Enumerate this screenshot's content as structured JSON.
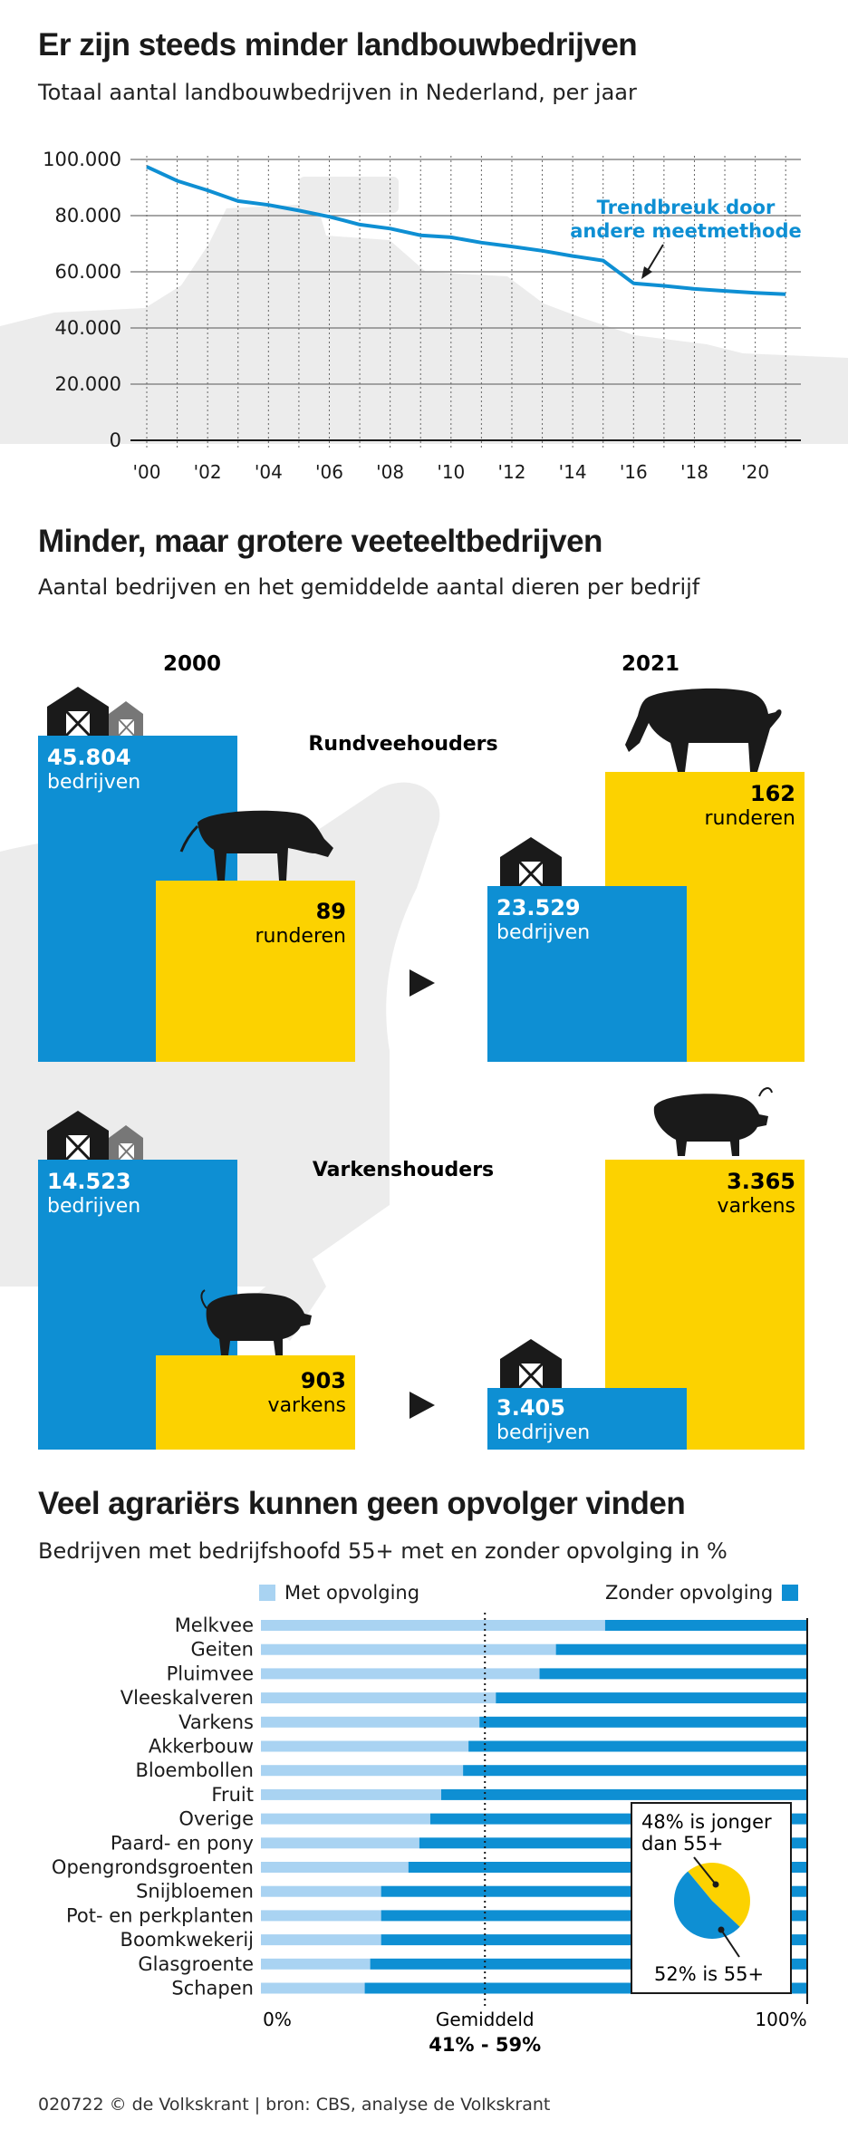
{
  "section1": {
    "title": "Er zijn steeds minder landbouwbedrijven",
    "subtitle": "Totaal aantal landbouwbedrijven in Nederland, per jaar"
  },
  "chart_line": {
    "type": "line",
    "x": [
      2000,
      2001,
      2002,
      2003,
      2004,
      2005,
      2006,
      2007,
      2008,
      2009,
      2010,
      2011,
      2012,
      2013,
      2014,
      2015,
      2016,
      2017,
      2018,
      2019,
      2020,
      2021
    ],
    "values": [
      97400,
      92400,
      89000,
      85200,
      83800,
      81800,
      79600,
      76800,
      75400,
      73000,
      72300,
      70400,
      69000,
      67500,
      65600,
      64000,
      55900,
      55000,
      53900,
      53200,
      52500,
      52000
    ],
    "ylim": [
      0,
      100000
    ],
    "yticks": [
      "100.000",
      "80.000",
      "60.000",
      "40.000",
      "20.000",
      "0"
    ],
    "xticks": [
      "'00",
      "'02",
      "'04",
      "'06",
      "'08",
      "'10",
      "'12",
      "'14",
      "'16",
      "'18",
      "'20"
    ],
    "annotation_line1": "Trendbreuk door",
    "annotation_line2": "andere meetmethode",
    "line_color": "#0e8fd3",
    "grid": true
  },
  "section2": {
    "title": "Minder, maar grotere veeteeltbedrijven",
    "subtitle": "Aantal bedrijven en het gemiddelde aantal dieren per bedrijf",
    "year_a": "2000",
    "year_b": "2021",
    "cattle": {
      "label": "Rundveehouders",
      "a_farms": "45.804",
      "a_farms_unit": "bedrijven",
      "a_animals": "89",
      "a_animals_unit": "runderen",
      "b_farms": "23.529",
      "b_farms_unit": "bedrijven",
      "b_animals": "162",
      "b_animals_unit": "runderen"
    },
    "pigs": {
      "label": "Varkenshouders",
      "a_farms": "14.523",
      "a_farms_unit": "bedrijven",
      "a_animals": "903",
      "a_animals_unit": "varkens",
      "b_farms": "3.405",
      "b_farms_unit": "bedrijven",
      "b_animals": "3.365",
      "b_animals_unit": "varkens"
    },
    "colors": {
      "blue": "#0e8fd3",
      "yellow": "#fcd200"
    }
  },
  "section3": {
    "title": "Veel agrariërs kunnen geen opvolger vinden",
    "subtitle": "Bedrijven met bedrijfshoofd 55+ met en zonder opvolging in %",
    "legend_with": "Met opvolging",
    "legend_without": "Zonder opvolging",
    "axis_min": "0%",
    "axis_mid": "Gemiddeld",
    "axis_max": "100%",
    "average_label": "41% - 59%",
    "pie_top_line1": "48% is jonger",
    "pie_top_line2": "dan 55+",
    "pie_bottom": "52% is 55+"
  },
  "chart_data": {
    "type": "bar",
    "orientation": "horizontal",
    "stacked": true,
    "categories": [
      "Melkvee",
      "Geiten",
      "Pluimvee",
      "Vleeskalveren",
      "Varkens",
      "Akkerbouw",
      "Bloembollen",
      "Fruit",
      "Overige",
      "Paard- en pony",
      "Opengrondsgroenten",
      "Snijbloemen",
      "Pot- en perkplanten",
      "Boomkwekerij",
      "Glasgroente",
      "Schapen"
    ],
    "series": [
      {
        "name": "Met opvolging",
        "values": [
          63,
          54,
          51,
          43,
          40,
          38,
          37,
          33,
          31,
          29,
          27,
          22,
          22,
          22,
          20,
          19
        ],
        "color": "#a9d3f2"
      },
      {
        "name": "Zonder opvolging",
        "values": [
          37,
          46,
          49,
          57,
          60,
          62,
          63,
          67,
          69,
          71,
          73,
          78,
          78,
          78,
          80,
          81
        ],
        "color": "#0e8fd3"
      }
    ],
    "xlim": [
      0,
      100
    ],
    "average": 41,
    "pie": {
      "values": [
        48,
        52
      ],
      "colors": [
        "#fcd200",
        "#0e8fd3"
      ]
    }
  },
  "footer": "020722 © de Volkskrant | bron: CBS, analyse de Volkskrant"
}
